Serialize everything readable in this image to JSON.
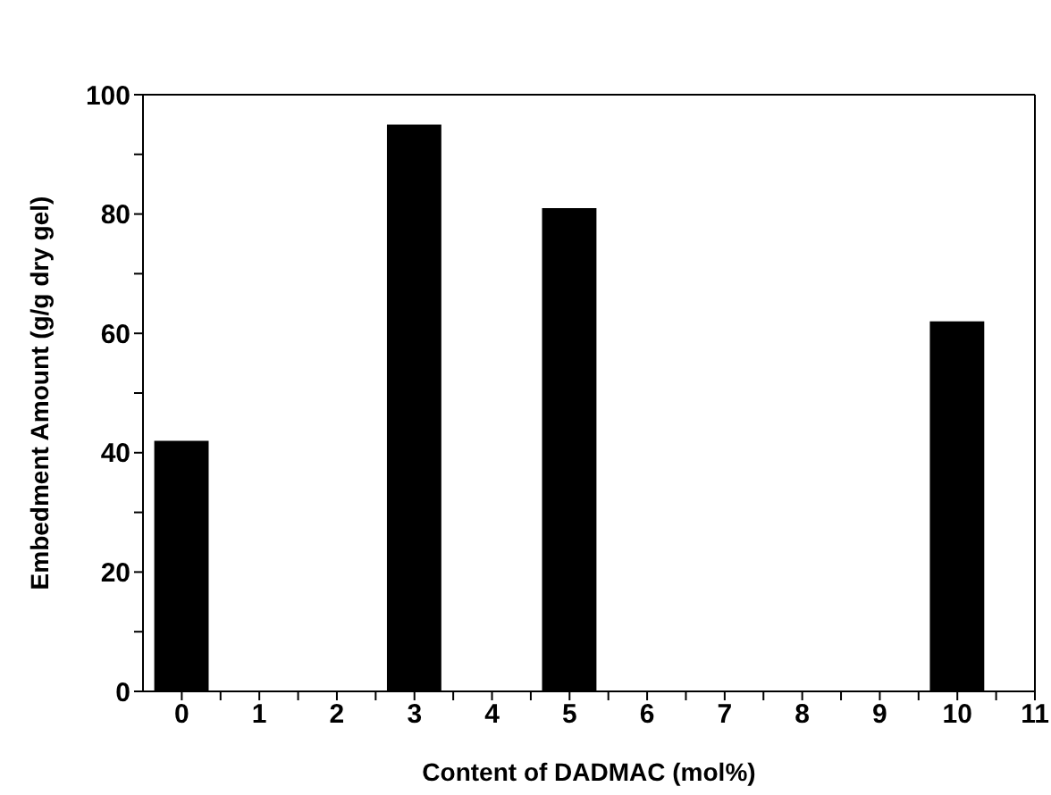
{
  "chart_data": {
    "type": "bar",
    "xlabel": "Content of DADMAC (mol%)",
    "ylabel": "Embedment Amount (g/g dry gel)",
    "x": [
      0,
      3,
      5,
      10
    ],
    "values": [
      42,
      95,
      81,
      62
    ],
    "color": "#000000",
    "xlim": [
      -0.5,
      11
    ],
    "xticks": [
      0,
      {
        "value": 0.5,
        "label": null
      },
      1,
      {
        "value": 1.5,
        "label": null
      },
      2,
      {
        "value": 2.5,
        "label": null
      },
      3,
      {
        "value": 3.5,
        "label": null
      },
      4,
      {
        "value": 4.5,
        "label": null
      },
      5,
      {
        "value": 5.5,
        "label": null
      },
      6,
      {
        "value": 6.5,
        "label": null
      },
      7,
      {
        "value": 7.5,
        "label": null
      },
      8,
      {
        "value": 8.5,
        "label": null
      },
      9,
      {
        "value": 9.5,
        "label": null
      },
      10,
      {
        "value": 10.5,
        "label": null
      },
      11
    ],
    "ylim": [
      0,
      100
    ],
    "yticks": [
      0,
      {
        "value": 10,
        "label": null
      },
      20,
      {
        "value": 30,
        "label": null
      },
      40,
      {
        "value": 50,
        "label": null
      },
      60,
      {
        "value": 70,
        "label": null
      },
      80,
      {
        "value": 90,
        "label": null
      },
      100
    ],
    "grid": false,
    "legend": false
  }
}
